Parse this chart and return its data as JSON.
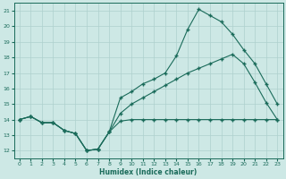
{
  "xlabel": "Humidex (Indice chaleur)",
  "bg_color": "#cde8e5",
  "grid_color": "#aed0cd",
  "line_color": "#1a6b5a",
  "xlim": [
    -0.5,
    23.5
  ],
  "ylim": [
    11.5,
    21.5
  ],
  "xticks": [
    0,
    1,
    2,
    3,
    4,
    5,
    6,
    7,
    8,
    9,
    10,
    11,
    12,
    13,
    14,
    15,
    16,
    17,
    18,
    19,
    20,
    21,
    22,
    23
  ],
  "yticks": [
    12,
    13,
    14,
    15,
    16,
    17,
    18,
    19,
    20,
    21
  ],
  "line1_x": [
    0,
    1,
    2,
    3,
    4,
    5,
    6,
    7,
    8,
    9,
    10,
    11,
    12,
    13,
    14,
    15,
    16,
    17,
    18,
    19,
    20,
    21,
    22,
    23
  ],
  "line1_y": [
    14.0,
    14.2,
    13.8,
    13.8,
    13.3,
    13.1,
    12.0,
    12.1,
    13.2,
    15.4,
    15.8,
    16.3,
    16.6,
    17.0,
    18.1,
    19.8,
    21.1,
    20.7,
    20.3,
    19.5,
    18.5,
    17.6,
    16.3,
    15.0
  ],
  "line2_x": [
    0,
    1,
    2,
    3,
    4,
    5,
    6,
    7,
    8,
    9,
    10,
    11,
    12,
    13,
    14,
    15,
    16,
    17,
    18,
    19,
    20,
    21,
    22,
    23
  ],
  "line2_y": [
    14.0,
    14.2,
    13.8,
    13.8,
    13.3,
    13.1,
    12.0,
    12.1,
    13.2,
    13.9,
    14.0,
    14.0,
    14.0,
    14.0,
    14.0,
    14.0,
    14.0,
    14.0,
    14.0,
    14.0,
    14.0,
    14.0,
    14.0,
    14.0
  ],
  "line3_x": [
    0,
    1,
    2,
    3,
    4,
    5,
    6,
    7,
    8,
    9,
    10,
    11,
    12,
    13,
    14,
    15,
    16,
    17,
    18,
    19,
    20,
    21,
    22,
    23
  ],
  "line3_y": [
    14.0,
    14.2,
    13.8,
    13.8,
    13.3,
    13.1,
    12.0,
    12.1,
    13.2,
    14.4,
    15.0,
    15.4,
    15.8,
    16.2,
    16.6,
    17.0,
    17.3,
    17.6,
    17.9,
    18.2,
    17.6,
    16.4,
    15.1,
    14.0
  ]
}
